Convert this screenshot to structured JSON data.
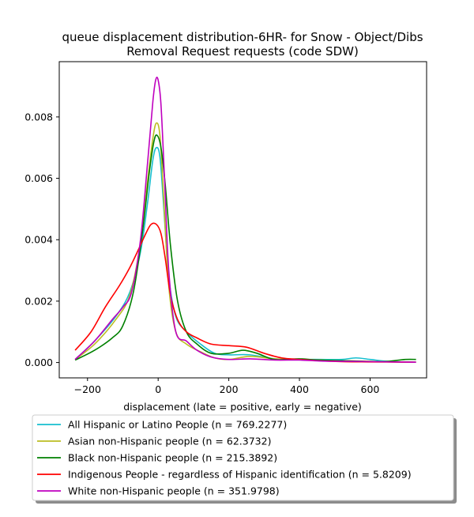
{
  "chart_data": {
    "type": "line",
    "title": [
      "queue displacement distribution-6HR-  for Snow - Object/Dibs",
      "Removal Request  requests (code SDW)"
    ],
    "xlabel": "displacement (late = positive, early = negative)",
    "ylabel": "",
    "xlim": [
      -280,
      760
    ],
    "ylim": [
      -0.0005,
      0.0098
    ],
    "xticks": [
      -200,
      0,
      200,
      400,
      600
    ],
    "xtick_labels": [
      "−200",
      "0",
      "200",
      "400",
      "600"
    ],
    "yticks": [
      0.0,
      0.002,
      0.004,
      0.006,
      0.008
    ],
    "ytick_labels": [
      "0.000",
      "0.002",
      "0.004",
      "0.006",
      "0.008"
    ],
    "grid": false,
    "legend_position": "below plot",
    "series": [
      {
        "name": "All Hispanic or Latino People (n = 769.2277)",
        "color": "#17becf",
        "points": [
          [
            -235,
            0.0001
          ],
          [
            -180,
            0.0007
          ],
          [
            -120,
            0.0015
          ],
          [
            -80,
            0.0023
          ],
          [
            -50,
            0.0036
          ],
          [
            -30,
            0.0052
          ],
          [
            -15,
            0.0066
          ],
          [
            -5,
            0.007
          ],
          [
            5,
            0.0067
          ],
          [
            15,
            0.0052
          ],
          [
            30,
            0.0028
          ],
          [
            50,
            0.0015
          ],
          [
            80,
            0.001
          ],
          [
            120,
            0.0006
          ],
          [
            160,
            0.0003
          ],
          [
            200,
            0.00025
          ],
          [
            260,
            0.00025
          ],
          [
            330,
            0.00012
          ],
          [
            400,
            0.0001
          ],
          [
            460,
            0.0001
          ],
          [
            520,
            0.0001
          ],
          [
            560,
            0.00015
          ],
          [
            600,
            0.0001
          ],
          [
            660,
            3e-05
          ],
          [
            730,
            1e-05
          ]
        ]
      },
      {
        "name": "Asian non-Hispanic people (n = 62.3732)",
        "color": "#bcbd22",
        "points": [
          [
            -235,
            0.0001
          ],
          [
            -180,
            0.0006
          ],
          [
            -120,
            0.0014
          ],
          [
            -80,
            0.0022
          ],
          [
            -50,
            0.0039
          ],
          [
            -30,
            0.0059
          ],
          [
            -15,
            0.0073
          ],
          [
            -5,
            0.0078
          ],
          [
            5,
            0.0074
          ],
          [
            15,
            0.0055
          ],
          [
            30,
            0.0025
          ],
          [
            50,
            0.001
          ],
          [
            80,
            0.0006
          ],
          [
            120,
            0.00035
          ],
          [
            160,
            0.00015
          ],
          [
            200,
            0.0001
          ],
          [
            260,
            0.0002
          ],
          [
            330,
            0.00012
          ],
          [
            400,
            0.0001
          ],
          [
            460,
            8e-05
          ],
          [
            520,
            6e-05
          ],
          [
            560,
            5e-05
          ],
          [
            600,
            4e-05
          ],
          [
            660,
            2e-05
          ],
          [
            730,
            1e-05
          ]
        ]
      },
      {
        "name": "Black non-Hispanic people (n = 215.3892)",
        "color": "#008000",
        "points": [
          [
            -235,
            8e-05
          ],
          [
            -180,
            0.0004
          ],
          [
            -130,
            0.0008
          ],
          [
            -100,
            0.0012
          ],
          [
            -70,
            0.0023
          ],
          [
            -45,
            0.0042
          ],
          [
            -25,
            0.0062
          ],
          [
            -12,
            0.0072
          ],
          [
            -3,
            0.0074
          ],
          [
            8,
            0.007
          ],
          [
            20,
            0.0058
          ],
          [
            35,
            0.0038
          ],
          [
            55,
            0.002
          ],
          [
            80,
            0.001
          ],
          [
            110,
            0.0006
          ],
          [
            150,
            0.0003
          ],
          [
            200,
            0.0003
          ],
          [
            240,
            0.0004
          ],
          [
            280,
            0.0003
          ],
          [
            330,
            0.0001
          ],
          [
            400,
            0.00012
          ],
          [
            450,
            8e-05
          ],
          [
            520,
            6e-05
          ],
          [
            580,
            4e-05
          ],
          [
            640,
            3e-05
          ],
          [
            700,
            0.0001
          ],
          [
            730,
            0.0001
          ]
        ]
      },
      {
        "name": "Indigenous People - regardless of Hispanic identification (n = 5.8209)",
        "color": "#ff0000",
        "points": [
          [
            -235,
            0.0004
          ],
          [
            -190,
            0.001
          ],
          [
            -150,
            0.0018
          ],
          [
            -110,
            0.0025
          ],
          [
            -80,
            0.0031
          ],
          [
            -55,
            0.0037
          ],
          [
            -35,
            0.0042
          ],
          [
            -20,
            0.0045
          ],
          [
            -5,
            0.0045
          ],
          [
            8,
            0.0042
          ],
          [
            20,
            0.0034
          ],
          [
            35,
            0.0022
          ],
          [
            55,
            0.0014
          ],
          [
            80,
            0.001
          ],
          [
            110,
            0.0008
          ],
          [
            150,
            0.0006
          ],
          [
            200,
            0.00055
          ],
          [
            250,
            0.0005
          ],
          [
            300,
            0.0003
          ],
          [
            350,
            0.00015
          ],
          [
            400,
            0.0001
          ],
          [
            450,
            6e-05
          ],
          [
            520,
            3e-05
          ],
          [
            600,
            2e-05
          ],
          [
            730,
            1e-05
          ]
        ]
      },
      {
        "name": "White non-Hispanic people (n = 351.9798)",
        "color": "#bf00bf",
        "points": [
          [
            -235,
            0.0001
          ],
          [
            -180,
            0.0007
          ],
          [
            -130,
            0.0014
          ],
          [
            -100,
            0.0018
          ],
          [
            -75,
            0.0023
          ],
          [
            -50,
            0.004
          ],
          [
            -30,
            0.0065
          ],
          [
            -15,
            0.0085
          ],
          [
            -7,
            0.0092
          ],
          [
            0,
            0.0092
          ],
          [
            8,
            0.0084
          ],
          [
            18,
            0.006
          ],
          [
            30,
            0.003
          ],
          [
            50,
            0.001
          ],
          [
            80,
            0.0007
          ],
          [
            110,
            0.0004
          ],
          [
            150,
            0.00018
          ],
          [
            200,
            0.0001
          ],
          [
            260,
            0.00012
          ],
          [
            330,
            8e-05
          ],
          [
            400,
            8e-05
          ],
          [
            460,
            5e-05
          ],
          [
            520,
            4e-05
          ],
          [
            600,
            3e-05
          ],
          [
            660,
            2e-05
          ],
          [
            730,
            1e-05
          ]
        ]
      }
    ]
  }
}
